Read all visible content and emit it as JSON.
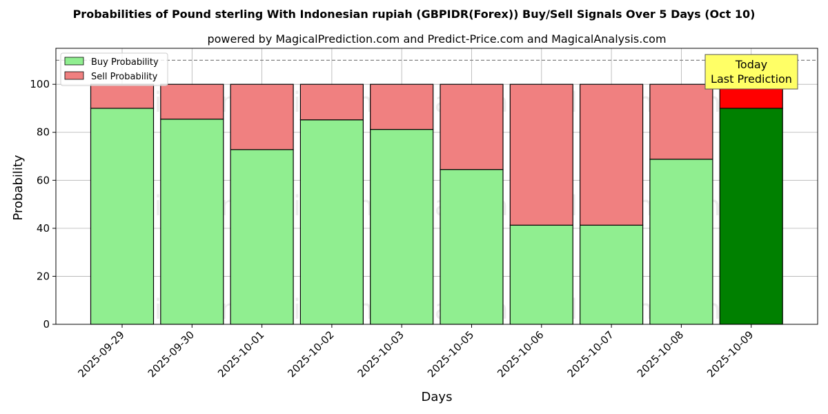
{
  "header": {
    "title": "Probabilities of Pound sterling With Indonesian rupiah (GBPIDR(Forex)) Buy/Sell Signals Over 5 Days (Oct 10)",
    "subtitle": "powered by MagicalPrediction.com and Predict-Price.com and MagicalAnalysis.com"
  },
  "watermarks": [
    "MagicalAnalysis.com",
    "MagicalPrediction.com"
  ],
  "annotation": {
    "line1": "Today",
    "line2": "Last Prediction"
  },
  "colors": {
    "buy": "#90ee90",
    "sell": "#f08080",
    "buy_today": "#008000",
    "sell_today": "#ff0000",
    "annotation_bg": "#ffff66"
  },
  "chart_data": {
    "type": "bar",
    "stacked": true,
    "xlabel": "Days",
    "ylabel": "Probability",
    "ylim": [
      0,
      115
    ],
    "yticks": [
      0,
      20,
      40,
      60,
      80,
      100
    ],
    "reference_line": 110,
    "grid": true,
    "legend_position": "top-left",
    "categories": [
      "2025-09-29",
      "2025-09-30",
      "2025-10-01",
      "2025-10-02",
      "2025-10-03",
      "2025-10-05",
      "2025-10-06",
      "2025-10-07",
      "2025-10-08",
      "2025-10-09"
    ],
    "series": [
      {
        "name": "Buy Probability",
        "values": [
          90,
          85.5,
          72.8,
          85.2,
          81.2,
          64.5,
          41.3,
          41.3,
          68.8,
          90
        ]
      },
      {
        "name": "Sell Probability",
        "values": [
          10,
          14.5,
          27.2,
          14.8,
          18.8,
          35.5,
          58.7,
          58.7,
          31.2,
          10
        ]
      }
    ]
  }
}
